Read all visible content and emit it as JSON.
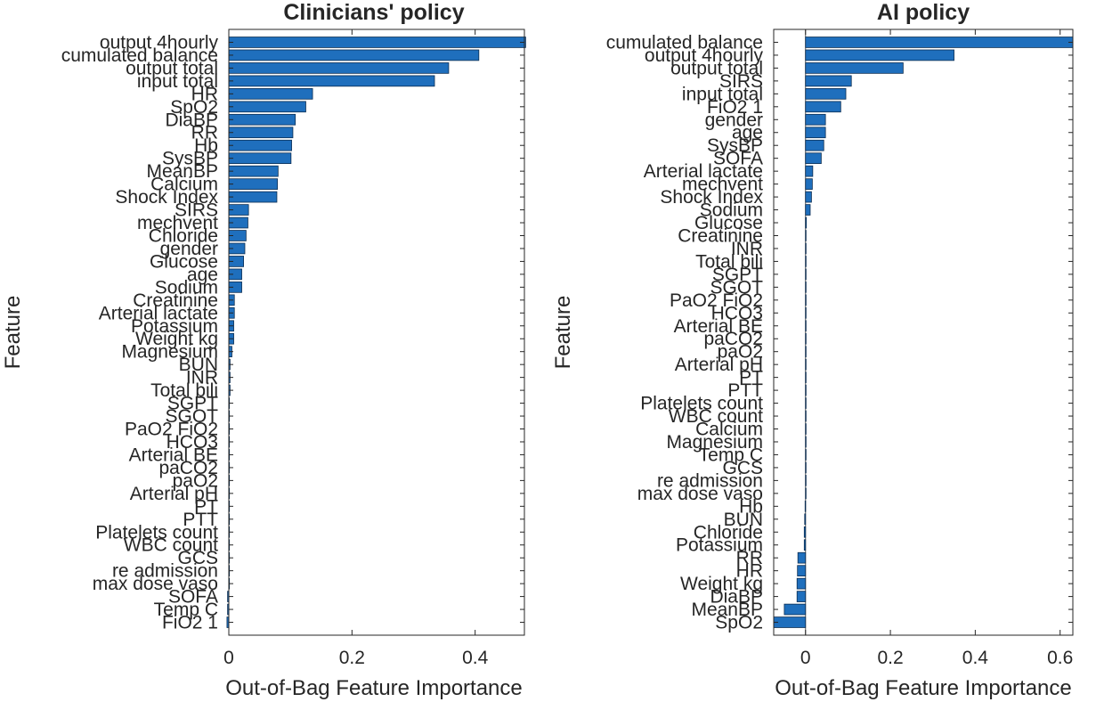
{
  "colors": {
    "bar": "#1f6fbd",
    "bar_edge": "#0b2d52",
    "axis": "#262626",
    "background": "#ffffff"
  },
  "chart_data": [
    {
      "type": "bar",
      "orientation": "horizontal",
      "title": "Clinicians' policy",
      "xlabel": "Out-of-Bag Feature Importance",
      "ylabel": "Feature",
      "xlim": [
        0,
        0.48
      ],
      "xticks": [
        0,
        0.2,
        0.4
      ],
      "xtick_labels": [
        "0",
        "0.2",
        "0.4"
      ],
      "grid": false,
      "categories": [
        "output 4hourly",
        "cumulated balance",
        "output total",
        "input total",
        "HR",
        "SpO2",
        "DiaBP",
        "RR",
        "Hb",
        "SysBP",
        "MeanBP",
        "Calcium",
        "Shock Index",
        "SIRS",
        "mechvent",
        "Chloride",
        "gender",
        "Glucose",
        "age",
        "Sodium",
        "Creatinine",
        "Arterial lactate",
        "Potassium",
        "Weight kg",
        "Magnesium",
        "BUN",
        "INR",
        "Total bili",
        "SGPT",
        "SGOT",
        "PaO2 FiO2",
        "HCO3",
        "Arterial BE",
        "paCO2",
        "paO2",
        "Arterial pH",
        "PT",
        "PTT",
        "Platelets count",
        "WBC count",
        "GCS",
        "re admission",
        "max dose vaso",
        "SOFA",
        "Temp C",
        "FiO2 1"
      ],
      "values": [
        0.482,
        0.406,
        0.357,
        0.334,
        0.136,
        0.125,
        0.108,
        0.104,
        0.102,
        0.101,
        0.08,
        0.079,
        0.078,
        0.032,
        0.031,
        0.028,
        0.026,
        0.024,
        0.021,
        0.021,
        0.009,
        0.009,
        0.008,
        0.008,
        0.005,
        0.002,
        0.002,
        0.002,
        0.001,
        0.001,
        0.001,
        0.001,
        0.001,
        0.001,
        0.001,
        0.001,
        0.001,
        0.001,
        0.001,
        0.001,
        0.001,
        0.001,
        0.001,
        -0.002,
        -0.002,
        -0.003
      ]
    },
    {
      "type": "bar",
      "orientation": "horizontal",
      "title": "AI policy",
      "xlabel": "Out-of-Bag Feature Importance",
      "ylabel": "Feature",
      "xlim": [
        -0.075,
        0.63
      ],
      "xticks": [
        0,
        0.2,
        0.4,
        0.6
      ],
      "xtick_labels": [
        "0",
        "0.2",
        "0.4",
        "0.6"
      ],
      "grid": false,
      "categories": [
        "cumulated balance",
        "output 4hourly",
        "output total",
        "SIRS",
        "input total",
        "FiO2 1",
        "gender",
        "age",
        "SysBP",
        "SOFA",
        "Arterial lactate",
        "mechvent",
        "Shock Index",
        "Sodium",
        "Glucose",
        "Creatinine",
        "INR",
        "Total bili",
        "SGPT",
        "SGOT",
        "PaO2 FiO2",
        "HCO3",
        "Arterial BE",
        "paCO2",
        "paO2",
        "Arterial pH",
        "PT",
        "PTT",
        "Platelets count",
        "WBC count",
        "Calcium",
        "Magnesium",
        "Temp C",
        "GCS",
        "re admission",
        "max dose vaso",
        "Hb",
        "BUN",
        "Chloride",
        "Potassium",
        "RR",
        "HR",
        "Weight kg",
        "DiaBP",
        "MeanBP",
        "SpO2"
      ],
      "values": [
        0.63,
        0.35,
        0.23,
        0.108,
        0.095,
        0.083,
        0.047,
        0.047,
        0.043,
        0.037,
        0.017,
        0.016,
        0.014,
        0.011,
        0.002,
        0.001,
        0.0005,
        0.0005,
        0.0004,
        0.0004,
        0.0003,
        0.0003,
        0.0003,
        0.0003,
        0.0002,
        0.0002,
        0.0002,
        0.0002,
        0.0001,
        0.0001,
        0.0001,
        0.0001,
        0.0001,
        0.0001,
        0.0001,
        0.0001,
        -0.001,
        -0.002,
        -0.003,
        -0.003,
        -0.018,
        -0.019,
        -0.02,
        -0.02,
        -0.05,
        -0.075
      ]
    }
  ]
}
